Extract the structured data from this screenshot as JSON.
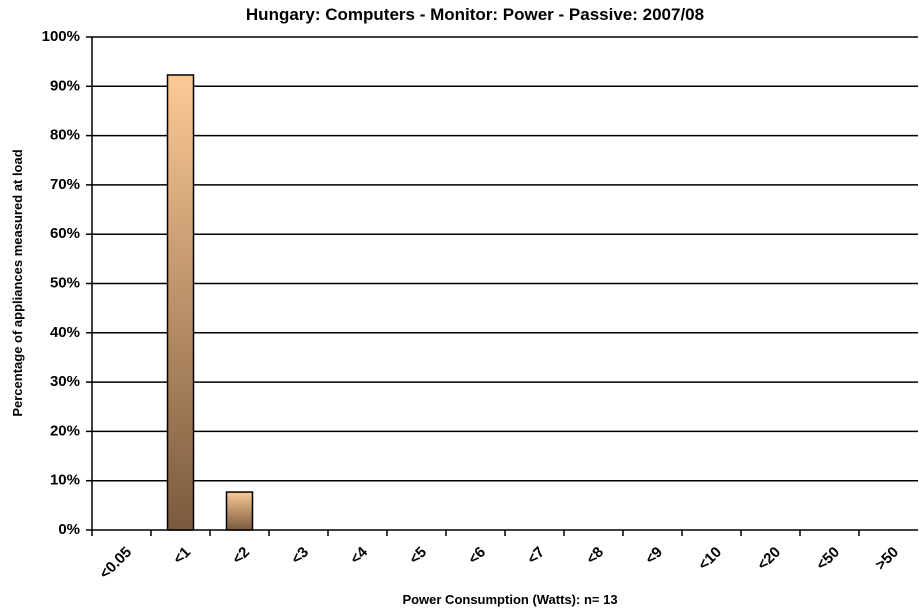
{
  "chart_data": {
    "type": "bar",
    "title": "Hungary: Computers - Monitor: Power - Passive: 2007/08",
    "x_label": "Power Consumption (Watts):  n= 13",
    "y_label": "Percentage of appliances measured at load",
    "categories": [
      "<0.05",
      "<1",
      "<2",
      "<3",
      "<4",
      "<5",
      "<6",
      "<7",
      "<8",
      "<9",
      "<10",
      "<20",
      "<50",
      ">50"
    ],
    "values": [
      0,
      92.3,
      7.7,
      0,
      0,
      0,
      0,
      0,
      0,
      0,
      0,
      0,
      0,
      0
    ],
    "color": "#fcc995",
    "ylim": [
      0,
      100
    ],
    "yticks": [
      {
        "value": 0,
        "label": "0%"
      },
      {
        "value": 10,
        "label": "10%"
      },
      {
        "value": 20,
        "label": "20%"
      },
      {
        "value": 30,
        "label": "30%"
      },
      {
        "value": 40,
        "label": "40%"
      },
      {
        "value": 50,
        "label": "50%"
      },
      {
        "value": 60,
        "label": "60%"
      },
      {
        "value": 70,
        "label": "70%"
      },
      {
        "value": 80,
        "label": "80%"
      },
      {
        "value": 90,
        "label": "90%"
      },
      {
        "value": 100,
        "label": "100%"
      }
    ],
    "grid": true
  }
}
